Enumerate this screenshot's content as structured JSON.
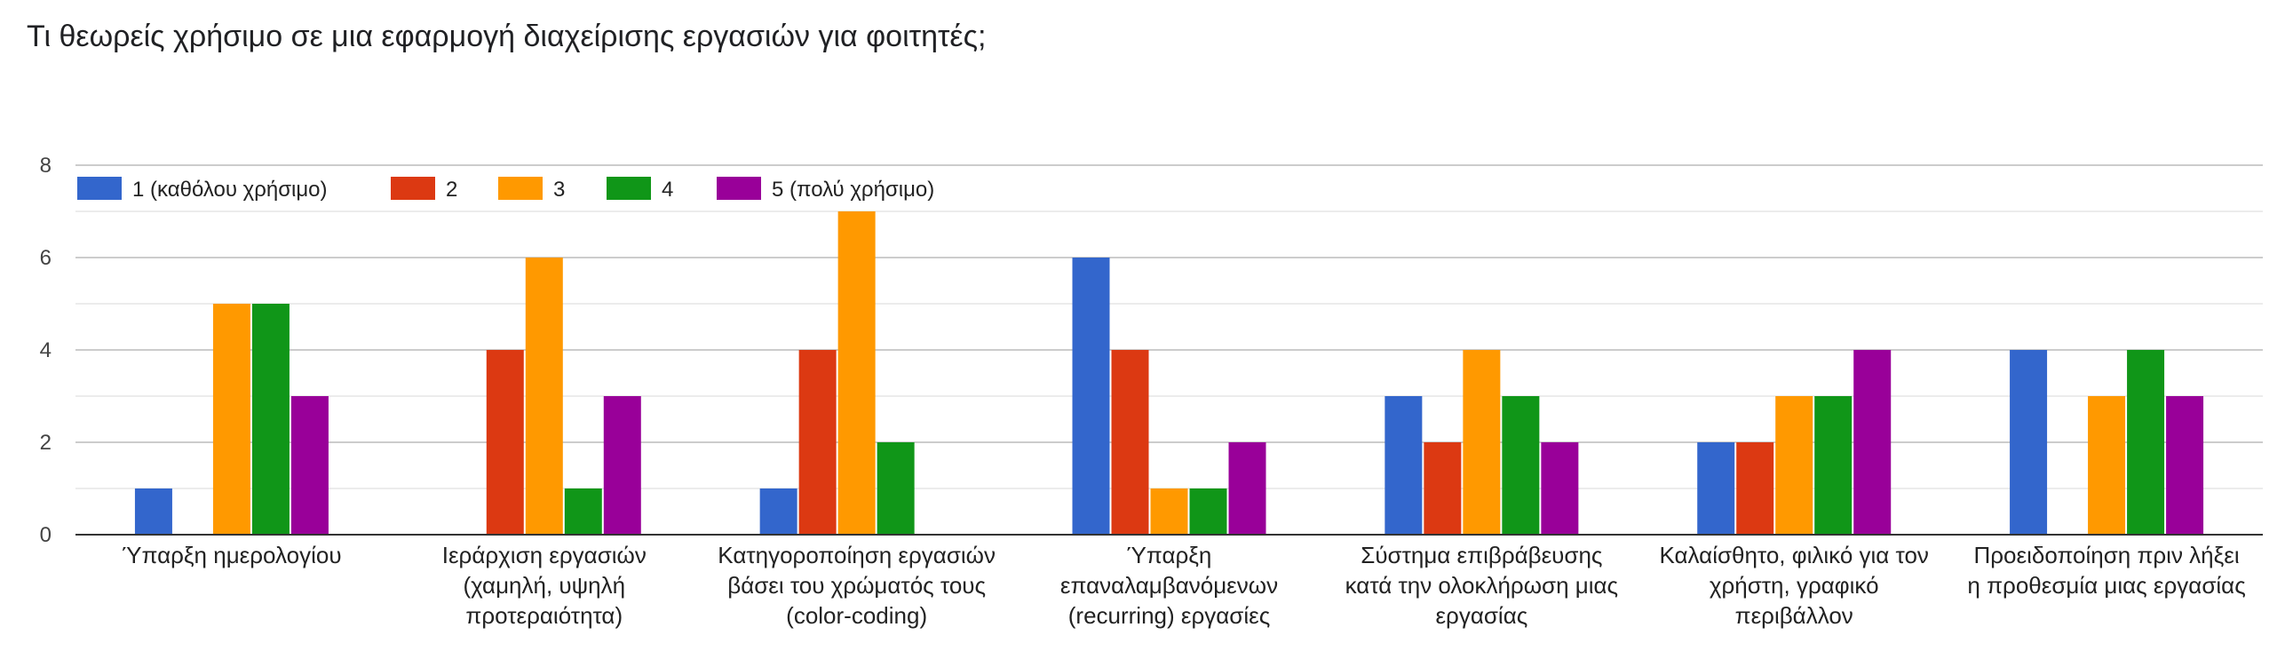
{
  "question": "Τι θεωρείς χρήσιμο σε μια εφαρμογή διαχείρισης εργασιών για φοιτητές;",
  "chart_data": {
    "type": "bar",
    "title": "Τι θεωρείς χρήσιμο σε μια εφαρμογή διαχείρισης εργασιών για φοιτητές;",
    "categories": [
      [
        "Ύπαρξη ημερολογίου"
      ],
      [
        "Ιεράρχιση εργασιών",
        "(χαμηλή, υψηλή",
        "προτεραιότητα)"
      ],
      [
        "Κατηγοροποίηση εργασιών",
        "βάσει του χρώματός τους",
        "(color-coding)"
      ],
      [
        "Ύπαρξη",
        "επαναλαμβανόμενων",
        "(recurring) εργασίες"
      ],
      [
        "Σύστημα επιβράβευσης",
        "κατά την ολοκλήρωση μιας",
        "εργασίας"
      ],
      [
        "Καλαίσθητο, φιλικό για τον",
        "χρήστη, γραφικό",
        "περιβάλλον"
      ],
      [
        "Προειδοποίηση πριν λήξει",
        "η προθεσμία μιας εργασίας"
      ]
    ],
    "series": [
      {
        "name": "1 (καθόλου χρήσιμο)",
        "color": "#3366cc",
        "values": [
          1,
          0,
          1,
          6,
          3,
          2,
          4
        ]
      },
      {
        "name": "2",
        "color": "#dc3912",
        "values": [
          0,
          4,
          4,
          4,
          2,
          2,
          0
        ]
      },
      {
        "name": "3",
        "color": "#ff9900",
        "values": [
          5,
          6,
          7,
          1,
          4,
          3,
          3
        ]
      },
      {
        "name": "4",
        "color": "#109618",
        "values": [
          5,
          1,
          2,
          1,
          3,
          3,
          4
        ]
      },
      {
        "name": "5 (πολύ χρήσιμο)",
        "color": "#990099",
        "values": [
          3,
          3,
          0,
          2,
          2,
          4,
          3
        ]
      }
    ],
    "ylim": [
      0,
      8
    ],
    "yticks": [
      0,
      2,
      4,
      6,
      8
    ],
    "grid": true,
    "legend": "top-left"
  }
}
